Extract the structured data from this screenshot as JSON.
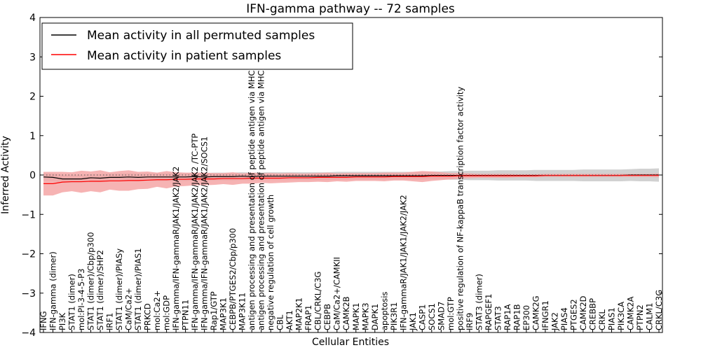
{
  "chart_data": {
    "type": "line",
    "title": "IFN-gamma pathway -- 72 samples",
    "xlabel": "Cellular Entities",
    "ylabel": "Inferred Activity",
    "ylim": [
      -4,
      4
    ],
    "yticks": [
      -4,
      -3,
      -2,
      -1,
      0,
      1,
      2,
      3,
      4
    ],
    "ytick_labels": [
      "−4",
      "−3",
      "−2",
      "−1",
      "0",
      "1",
      "2",
      "3",
      "4"
    ],
    "grid": false,
    "legend_position": "top-left",
    "categories": [
      "IFNG",
      "IFN-gamma (dimer)",
      "PI3K",
      "STAT1 (dimer)",
      "mol:PI-3-4-5-P3",
      "STAT1 (dimer)/Cbp/p300",
      "STAT1 (dimer)/SHP2",
      "IRF1",
      "STAT1 (dimer)/PIASy",
      "CaM/Ca2+",
      "STAT1 (dimer)/PIAS1",
      "PRKCD",
      "mol:Ca2+",
      "mol:GDP",
      "IFN-gamma/IFN-gammaR/JAK1/JAK2/JAK2",
      "PTPN11",
      "IFN-gamma/IFN-gammaR/JAK1/JAK2/JAK2 /TC-PTP",
      "IFN-gamma/IFN-gammaR/JAK1/JAK2/JAK2/SOCS1",
      "Rap1/GTP",
      "MAP3K1",
      "CEBPB/PTGES2/Cbp/p300",
      "MAP3K11",
      "antigen processing and presentation of peptide antigen via MHC class I",
      "antigen processing and presentation of peptide antigen via MHC class II",
      "negative regulation of cell growth",
      "CBL",
      "AKT1",
      "MAP2K1",
      "FRAP1",
      "CBL/CRKL/C3G",
      "CEBPB",
      "CaM/Ca2+/CAMKII",
      "CAMK2B",
      "MAPK1",
      "MAPK3",
      "DAPK1",
      "apoptosis",
      "PIK3R1",
      "IFN-gammaR/JAK1/JAK1/JAK2/JAK2",
      "JAK1",
      "CASP1",
      "SOCS1",
      "SMAD7",
      "mol:GTP",
      "positive regulation of NF-kappaB transcription factor activity",
      "IRF9",
      "STAT3 (dimer)",
      "RAPGEF1",
      "STAT3",
      "RAP1A",
      "RAP1B",
      "EP300",
      "CAMK2G",
      "IFNGR1",
      "JAK2",
      "PIAS4",
      "PTGES2",
      "CAMK2D",
      "CREBBP",
      "CRKL",
      "PIAS1",
      "PIK3CA",
      "CAMK2A",
      "PTPN2",
      "CALM1",
      "CRKL/C3G"
    ],
    "series": [
      {
        "name": "Mean activity in all permuted samples",
        "color": "#000000",
        "band_color": "#bdbdbd",
        "values": [
          -0.05,
          -0.06,
          -0.1,
          -0.1,
          -0.1,
          -0.07,
          -0.08,
          -0.06,
          -0.06,
          -0.05,
          -0.06,
          -0.05,
          -0.05,
          -0.05,
          -0.05,
          -0.05,
          -0.04,
          -0.05,
          -0.04,
          -0.04,
          -0.04,
          -0.03,
          -0.04,
          -0.03,
          -0.03,
          -0.03,
          -0.03,
          -0.03,
          -0.03,
          -0.03,
          -0.03,
          -0.02,
          -0.02,
          -0.02,
          -0.02,
          -0.02,
          -0.02,
          -0.02,
          -0.02,
          -0.02,
          -0.02,
          -0.01,
          -0.01,
          -0.01,
          -0.01,
          -0.01,
          -0.01,
          -0.01,
          -0.01,
          -0.01,
          -0.01,
          -0.01,
          -0.01,
          -0.01,
          -0.01,
          -0.01,
          -0.01,
          -0.01,
          -0.01,
          -0.01,
          -0.01,
          -0.01,
          0.0,
          0.0,
          0.0,
          0.0
        ],
        "spread": [
          0.1,
          0.1,
          0.1,
          0.1,
          0.1,
          0.1,
          0.1,
          0.1,
          0.1,
          0.1,
          0.1,
          0.1,
          0.1,
          0.1,
          0.1,
          0.1,
          0.1,
          0.1,
          0.1,
          0.1,
          0.1,
          0.1,
          0.1,
          0.1,
          0.1,
          0.1,
          0.1,
          0.1,
          0.1,
          0.1,
          0.1,
          0.1,
          0.1,
          0.1,
          0.1,
          0.1,
          0.1,
          0.1,
          0.1,
          0.1,
          0.1,
          0.1,
          0.1,
          0.11,
          0.11,
          0.12,
          0.12,
          0.12,
          0.13,
          0.13,
          0.13,
          0.13,
          0.14,
          0.14,
          0.14,
          0.14,
          0.14,
          0.15,
          0.15,
          0.15,
          0.15,
          0.15,
          0.15,
          0.16,
          0.16,
          0.17
        ]
      },
      {
        "name": "Mean activity in patient samples",
        "color": "#ff0000",
        "band_color": "#f4a6a6",
        "values": [
          -0.22,
          -0.22,
          -0.18,
          -0.17,
          -0.17,
          -0.16,
          -0.16,
          -0.15,
          -0.15,
          -0.14,
          -0.14,
          -0.13,
          -0.12,
          -0.12,
          -0.11,
          -0.11,
          -0.1,
          -0.1,
          -0.1,
          -0.09,
          -0.09,
          -0.09,
          -0.08,
          -0.08,
          -0.08,
          -0.08,
          -0.07,
          -0.07,
          -0.07,
          -0.06,
          -0.06,
          -0.06,
          -0.06,
          -0.05,
          -0.05,
          -0.05,
          -0.05,
          -0.04,
          -0.04,
          -0.04,
          -0.04,
          -0.03,
          -0.03,
          -0.03,
          -0.02,
          -0.02,
          -0.02,
          -0.02,
          -0.02,
          -0.02,
          -0.02,
          -0.02,
          -0.02,
          -0.01,
          -0.01,
          -0.01,
          -0.01,
          -0.01,
          -0.01,
          -0.01,
          -0.01,
          -0.01,
          -0.01,
          -0.01,
          -0.01,
          -0.01
        ],
        "spread": [
          0.3,
          0.3,
          0.26,
          0.24,
          0.28,
          0.25,
          0.28,
          0.22,
          0.25,
          0.26,
          0.22,
          0.22,
          0.18,
          0.22,
          0.18,
          0.17,
          0.16,
          0.16,
          0.15,
          0.14,
          0.16,
          0.13,
          0.14,
          0.12,
          0.13,
          0.12,
          0.12,
          0.11,
          0.11,
          0.11,
          0.12,
          0.1,
          0.11,
          0.1,
          0.1,
          0.1,
          0.11,
          0.1,
          0.1,
          0.12,
          0.14,
          0.12,
          0.1,
          0.08,
          0.07,
          0.06,
          0.05,
          0.05,
          0.05,
          0.05,
          0.04,
          0.04,
          0.04,
          0.04,
          0.04,
          0.04,
          0.04,
          0.04,
          0.04,
          0.04,
          0.04,
          0.04,
          0.04,
          0.04,
          0.04,
          0.05
        ]
      }
    ]
  }
}
